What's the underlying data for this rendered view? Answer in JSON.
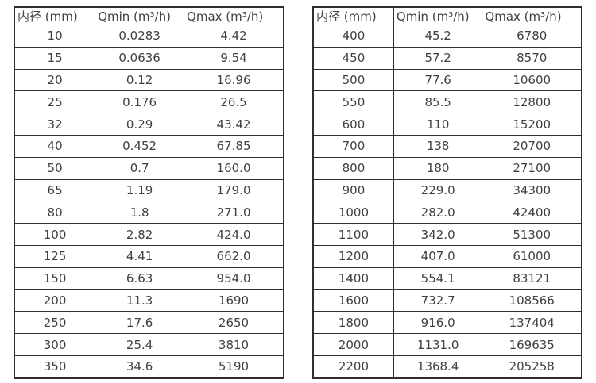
{
  "colors": {
    "background": "#ffffff",
    "border": "#2f2f2f",
    "text": "#404040"
  },
  "tables": [
    {
      "name": "flow-spec-table-left",
      "headers": [
        "内径 (mm)",
        "Qmin (m³/h)",
        "Qmax (m³/h)"
      ],
      "rows": [
        [
          "10",
          "0.0283",
          "4.42"
        ],
        [
          "15",
          "0.0636",
          "9.54"
        ],
        [
          "20",
          "0.12",
          "16.96"
        ],
        [
          "25",
          "0.176",
          "26.5"
        ],
        [
          "32",
          "0.29",
          "43.42"
        ],
        [
          "40",
          "0.452",
          "67.85"
        ],
        [
          "50",
          "0.7",
          "160.0"
        ],
        [
          "65",
          "1.19",
          "179.0"
        ],
        [
          "80",
          "1.8",
          "271.0"
        ],
        [
          "100",
          "2.82",
          "424.0"
        ],
        [
          "125",
          "4.41",
          "662.0"
        ],
        [
          "150",
          "6.63",
          "954.0"
        ],
        [
          "200",
          "11.3",
          "1690"
        ],
        [
          "250",
          "17.6",
          "2650"
        ],
        [
          "300",
          "25.4",
          "3810"
        ],
        [
          "350",
          "34.6",
          "5190"
        ]
      ]
    },
    {
      "name": "flow-spec-table-right",
      "headers": [
        "内径 (mm)",
        "Qmin (m³/h)",
        "Qmax (m³/h)"
      ],
      "rows": [
        [
          "400",
          "45.2",
          "6780"
        ],
        [
          "450",
          "57.2",
          "8570"
        ],
        [
          "500",
          "77.6",
          "10600"
        ],
        [
          "550",
          "85.5",
          "12800"
        ],
        [
          "600",
          "110",
          "15200"
        ],
        [
          "700",
          "138",
          "20700"
        ],
        [
          "800",
          "180",
          "27100"
        ],
        [
          "900",
          "229.0",
          "34300"
        ],
        [
          "1000",
          "282.0",
          "42400"
        ],
        [
          "1100",
          "342.0",
          "51300"
        ],
        [
          "1200",
          "407.0",
          "61000"
        ],
        [
          "1400",
          "554.1",
          "83121"
        ],
        [
          "1600",
          "732.7",
          "108566"
        ],
        [
          "1800",
          "916.0",
          "137404"
        ],
        [
          "2000",
          "1131.0",
          "169635"
        ],
        [
          "2200",
          "1368.4",
          "205258"
        ]
      ]
    }
  ],
  "chart_data": [
    {
      "type": "table",
      "title": "",
      "columns": [
        "内径 (mm)",
        "Qmin (m³/h)",
        "Qmax (m³/h)"
      ],
      "rows": [
        [
          10,
          0.0283,
          4.42
        ],
        [
          15,
          0.0636,
          9.54
        ],
        [
          20,
          0.12,
          16.96
        ],
        [
          25,
          0.176,
          26.5
        ],
        [
          32,
          0.29,
          43.42
        ],
        [
          40,
          0.452,
          67.85
        ],
        [
          50,
          0.7,
          160.0
        ],
        [
          65,
          1.19,
          179.0
        ],
        [
          80,
          1.8,
          271.0
        ],
        [
          100,
          2.82,
          424.0
        ],
        [
          125,
          4.41,
          662.0
        ],
        [
          150,
          6.63,
          954.0
        ],
        [
          200,
          11.3,
          1690
        ],
        [
          250,
          17.6,
          2650
        ],
        [
          300,
          25.4,
          3810
        ],
        [
          350,
          34.6,
          5190
        ]
      ]
    },
    {
      "type": "table",
      "title": "",
      "columns": [
        "内径 (mm)",
        "Qmin (m³/h)",
        "Qmax (m³/h)"
      ],
      "rows": [
        [
          400,
          45.2,
          6780
        ],
        [
          450,
          57.2,
          8570
        ],
        [
          500,
          77.6,
          10600
        ],
        [
          550,
          85.5,
          12800
        ],
        [
          600,
          110,
          15200
        ],
        [
          700,
          138,
          20700
        ],
        [
          800,
          180,
          27100
        ],
        [
          900,
          229.0,
          34300
        ],
        [
          1000,
          282.0,
          42400
        ],
        [
          1100,
          342.0,
          51300
        ],
        [
          1200,
          407.0,
          61000
        ],
        [
          1400,
          554.1,
          83121
        ],
        [
          1600,
          732.7,
          108566
        ],
        [
          1800,
          916.0,
          137404
        ],
        [
          2000,
          1131.0,
          169635
        ],
        [
          2200,
          1368.4,
          205258
        ]
      ]
    }
  ]
}
